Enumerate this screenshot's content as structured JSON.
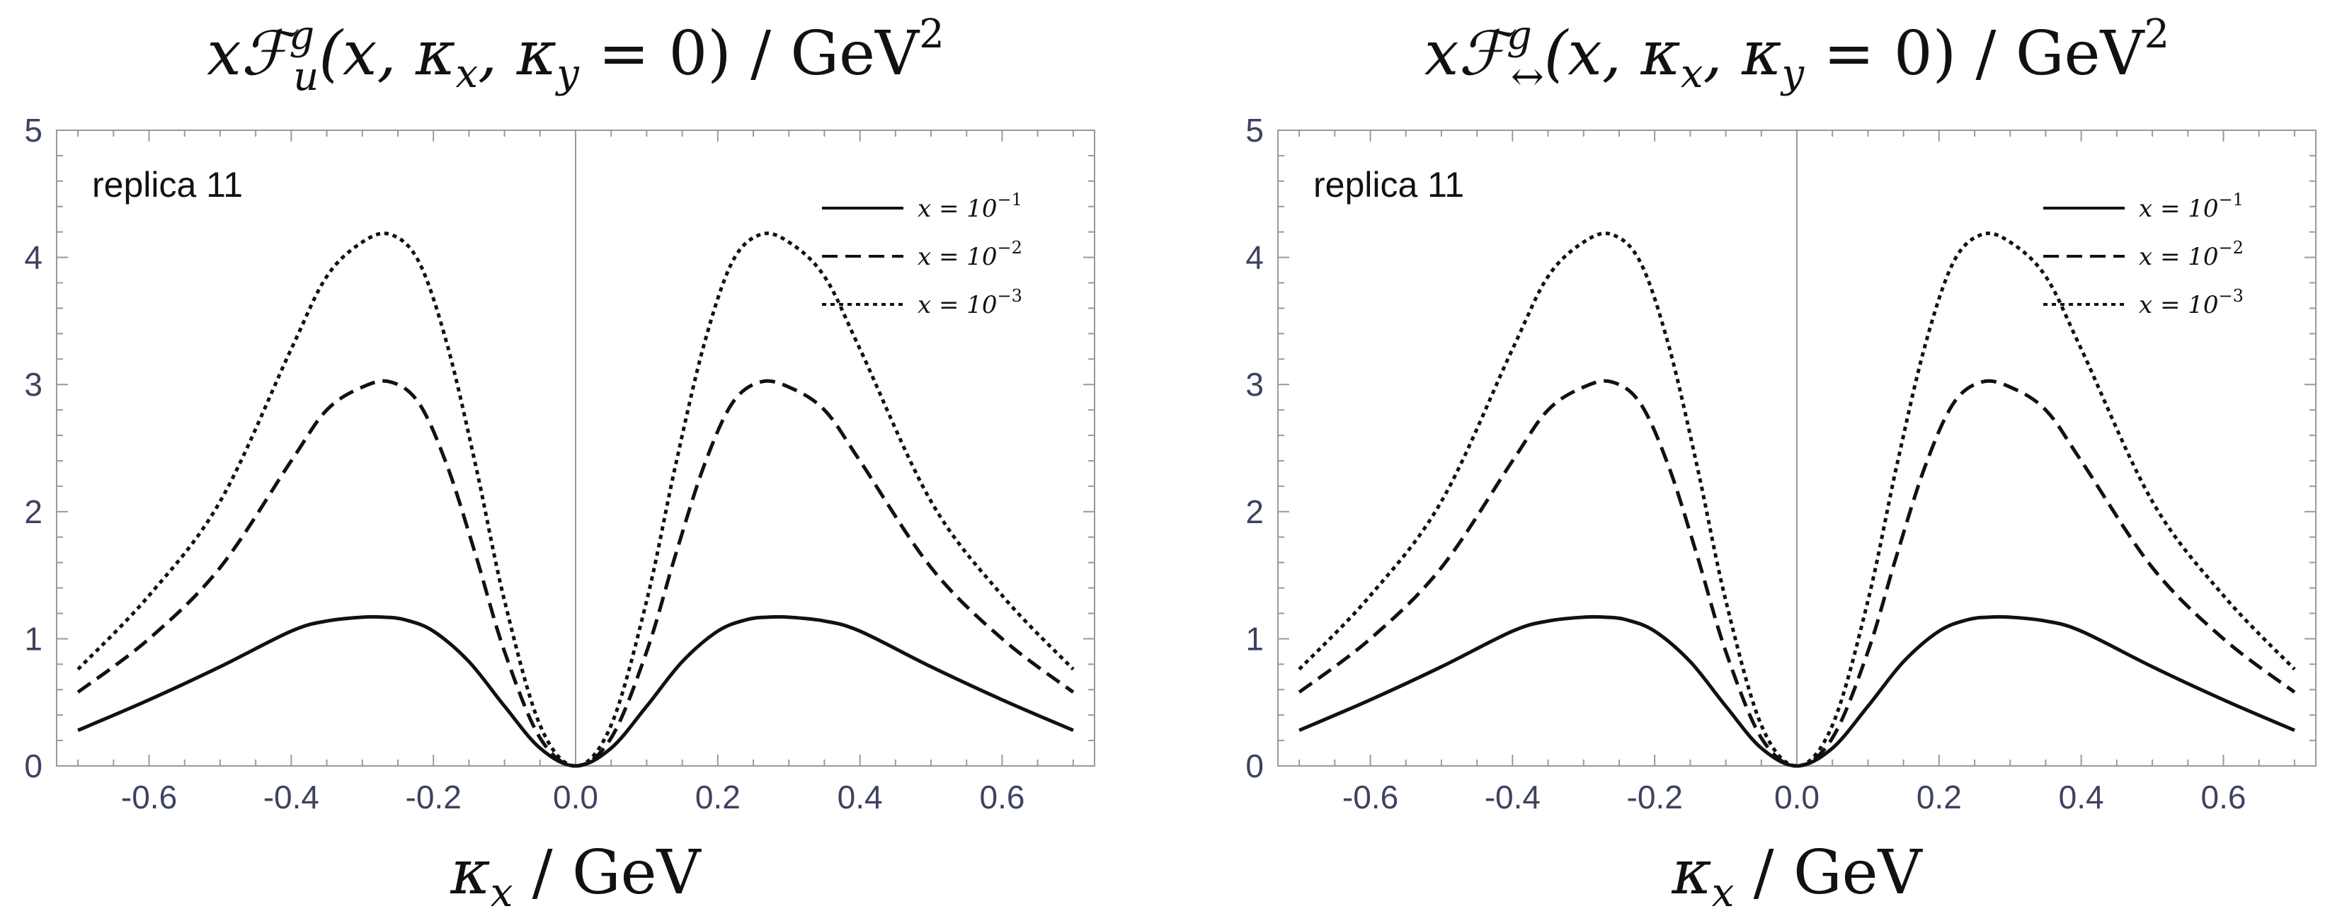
{
  "chart_data": [
    {
      "type": "line",
      "title_parts": [
        "x",
        "ℱ",
        "g",
        "u",
        "(x, κ",
        "x",
        ", κ",
        "y",
        " = 0) / GeV",
        "2"
      ],
      "xlabel_parts": [
        "κ",
        "x",
        " / GeV"
      ],
      "ylabel": "",
      "annotation": "replica 11",
      "xlim": [
        -0.73,
        0.73
      ],
      "ylim": [
        0,
        5
      ],
      "xticks": [
        -0.6,
        -0.4,
        -0.2,
        0.0,
        0.2,
        0.4,
        0.6
      ],
      "xtick_labels": [
        "-0.6",
        "-0.4",
        "-0.2",
        "0.0",
        "0.2",
        "0.4",
        "0.6"
      ],
      "yticks": [
        0,
        1,
        2,
        3,
        4,
        5
      ],
      "ytick_labels": [
        "0",
        "1",
        "2",
        "3",
        "4",
        "5"
      ],
      "grid": false,
      "legend_position": "top-right",
      "series": [
        {
          "name": "x = 10⁻¹",
          "label_main": "x = 10",
          "label_exp": "−1",
          "style": "solid",
          "x": [
            -0.7,
            -0.6,
            -0.5,
            -0.4,
            -0.35,
            -0.3,
            -0.27,
            -0.24,
            -0.2,
            -0.15,
            -0.1,
            -0.05,
            0.0,
            0.05,
            0.1,
            0.15,
            0.2,
            0.24,
            0.27,
            0.3,
            0.35,
            0.4,
            0.5,
            0.6,
            0.7
          ],
          "y": [
            0.28,
            0.52,
            0.78,
            1.06,
            1.14,
            1.17,
            1.17,
            1.15,
            1.06,
            0.82,
            0.47,
            0.14,
            0.0,
            0.14,
            0.47,
            0.82,
            1.06,
            1.15,
            1.17,
            1.17,
            1.14,
            1.06,
            0.78,
            0.52,
            0.28
          ]
        },
        {
          "name": "x = 10⁻²",
          "label_main": "x = 10",
          "label_exp": "−2",
          "style": "dashed",
          "x": [
            -0.7,
            -0.6,
            -0.5,
            -0.4,
            -0.35,
            -0.3,
            -0.26,
            -0.22,
            -0.18,
            -0.14,
            -0.1,
            -0.05,
            0.0,
            0.05,
            0.1,
            0.14,
            0.18,
            0.22,
            0.26,
            0.3,
            0.35,
            0.4,
            0.5,
            0.6,
            0.7
          ],
          "y": [
            0.58,
            1.0,
            1.56,
            2.4,
            2.8,
            2.98,
            3.02,
            2.85,
            2.35,
            1.65,
            0.9,
            0.22,
            0.0,
            0.22,
            0.9,
            1.65,
            2.35,
            2.85,
            3.02,
            2.98,
            2.8,
            2.4,
            1.56,
            1.0,
            0.58
          ]
        },
        {
          "name": "x = 10⁻³",
          "label_main": "x = 10",
          "label_exp": "−3",
          "style": "dotted",
          "x": [
            -0.7,
            -0.6,
            -0.5,
            -0.4,
            -0.35,
            -0.3,
            -0.26,
            -0.22,
            -0.18,
            -0.14,
            -0.1,
            -0.05,
            0.0,
            0.05,
            0.1,
            0.14,
            0.18,
            0.22,
            0.26,
            0.3,
            0.35,
            0.4,
            0.5,
            0.6,
            0.7
          ],
          "y": [
            0.76,
            1.34,
            2.08,
            3.28,
            3.85,
            4.12,
            4.18,
            3.96,
            3.3,
            2.35,
            1.3,
            0.32,
            0.0,
            0.32,
            1.3,
            2.35,
            3.3,
            3.96,
            4.18,
            4.12,
            3.85,
            3.28,
            2.08,
            1.34,
            0.76
          ]
        }
      ]
    },
    {
      "type": "line",
      "title_parts": [
        "x",
        "ℱ",
        "g",
        "↔",
        "(x, κ",
        "x",
        ", κ",
        "y",
        " = 0) / GeV",
        "2"
      ],
      "xlabel_parts": [
        "κ",
        "x",
        " / GeV"
      ],
      "ylabel": "",
      "annotation": "replica 11",
      "xlim": [
        -0.73,
        0.73
      ],
      "ylim": [
        0,
        5
      ],
      "xticks": [
        -0.6,
        -0.4,
        -0.2,
        0.0,
        0.2,
        0.4,
        0.6
      ],
      "xtick_labels": [
        "-0.6",
        "-0.4",
        "-0.2",
        "0.0",
        "0.2",
        "0.4",
        "0.6"
      ],
      "yticks": [
        0,
        1,
        2,
        3,
        4,
        5
      ],
      "ytick_labels": [
        "0",
        "1",
        "2",
        "3",
        "4",
        "5"
      ],
      "grid": false,
      "legend_position": "top-right",
      "series": [
        {
          "name": "x = 10⁻¹",
          "label_main": "x = 10",
          "label_exp": "−1",
          "style": "solid",
          "x": [
            -0.7,
            -0.6,
            -0.5,
            -0.4,
            -0.35,
            -0.3,
            -0.27,
            -0.24,
            -0.2,
            -0.15,
            -0.1,
            -0.05,
            0.0,
            0.05,
            0.1,
            0.15,
            0.2,
            0.24,
            0.27,
            0.3,
            0.35,
            0.4,
            0.5,
            0.6,
            0.7
          ],
          "y": [
            0.28,
            0.52,
            0.78,
            1.06,
            1.14,
            1.17,
            1.17,
            1.15,
            1.06,
            0.82,
            0.47,
            0.14,
            0.0,
            0.14,
            0.47,
            0.82,
            1.06,
            1.15,
            1.17,
            1.17,
            1.14,
            1.06,
            0.78,
            0.52,
            0.28
          ]
        },
        {
          "name": "x = 10⁻²",
          "label_main": "x = 10",
          "label_exp": "−2",
          "style": "dashed",
          "x": [
            -0.7,
            -0.6,
            -0.5,
            -0.4,
            -0.35,
            -0.3,
            -0.26,
            -0.22,
            -0.18,
            -0.14,
            -0.1,
            -0.05,
            0.0,
            0.05,
            0.1,
            0.14,
            0.18,
            0.22,
            0.26,
            0.3,
            0.35,
            0.4,
            0.5,
            0.6,
            0.7
          ],
          "y": [
            0.58,
            1.0,
            1.56,
            2.4,
            2.8,
            2.98,
            3.02,
            2.85,
            2.35,
            1.65,
            0.9,
            0.22,
            0.0,
            0.22,
            0.9,
            1.65,
            2.35,
            2.85,
            3.02,
            2.98,
            2.8,
            2.4,
            1.56,
            1.0,
            0.58
          ]
        },
        {
          "name": "x = 10⁻³",
          "label_main": "x = 10",
          "label_exp": "−3",
          "style": "dotted",
          "x": [
            -0.7,
            -0.6,
            -0.5,
            -0.4,
            -0.35,
            -0.3,
            -0.26,
            -0.22,
            -0.18,
            -0.14,
            -0.1,
            -0.05,
            0.0,
            0.05,
            0.1,
            0.14,
            0.18,
            0.22,
            0.26,
            0.3,
            0.35,
            0.4,
            0.5,
            0.6,
            0.7
          ],
          "y": [
            0.76,
            1.34,
            2.08,
            3.28,
            3.85,
            4.12,
            4.18,
            3.96,
            3.3,
            2.35,
            1.3,
            0.32,
            0.0,
            0.32,
            1.3,
            2.35,
            3.3,
            3.96,
            4.18,
            4.12,
            3.85,
            3.28,
            2.08,
            1.34,
            0.76
          ]
        }
      ]
    }
  ]
}
